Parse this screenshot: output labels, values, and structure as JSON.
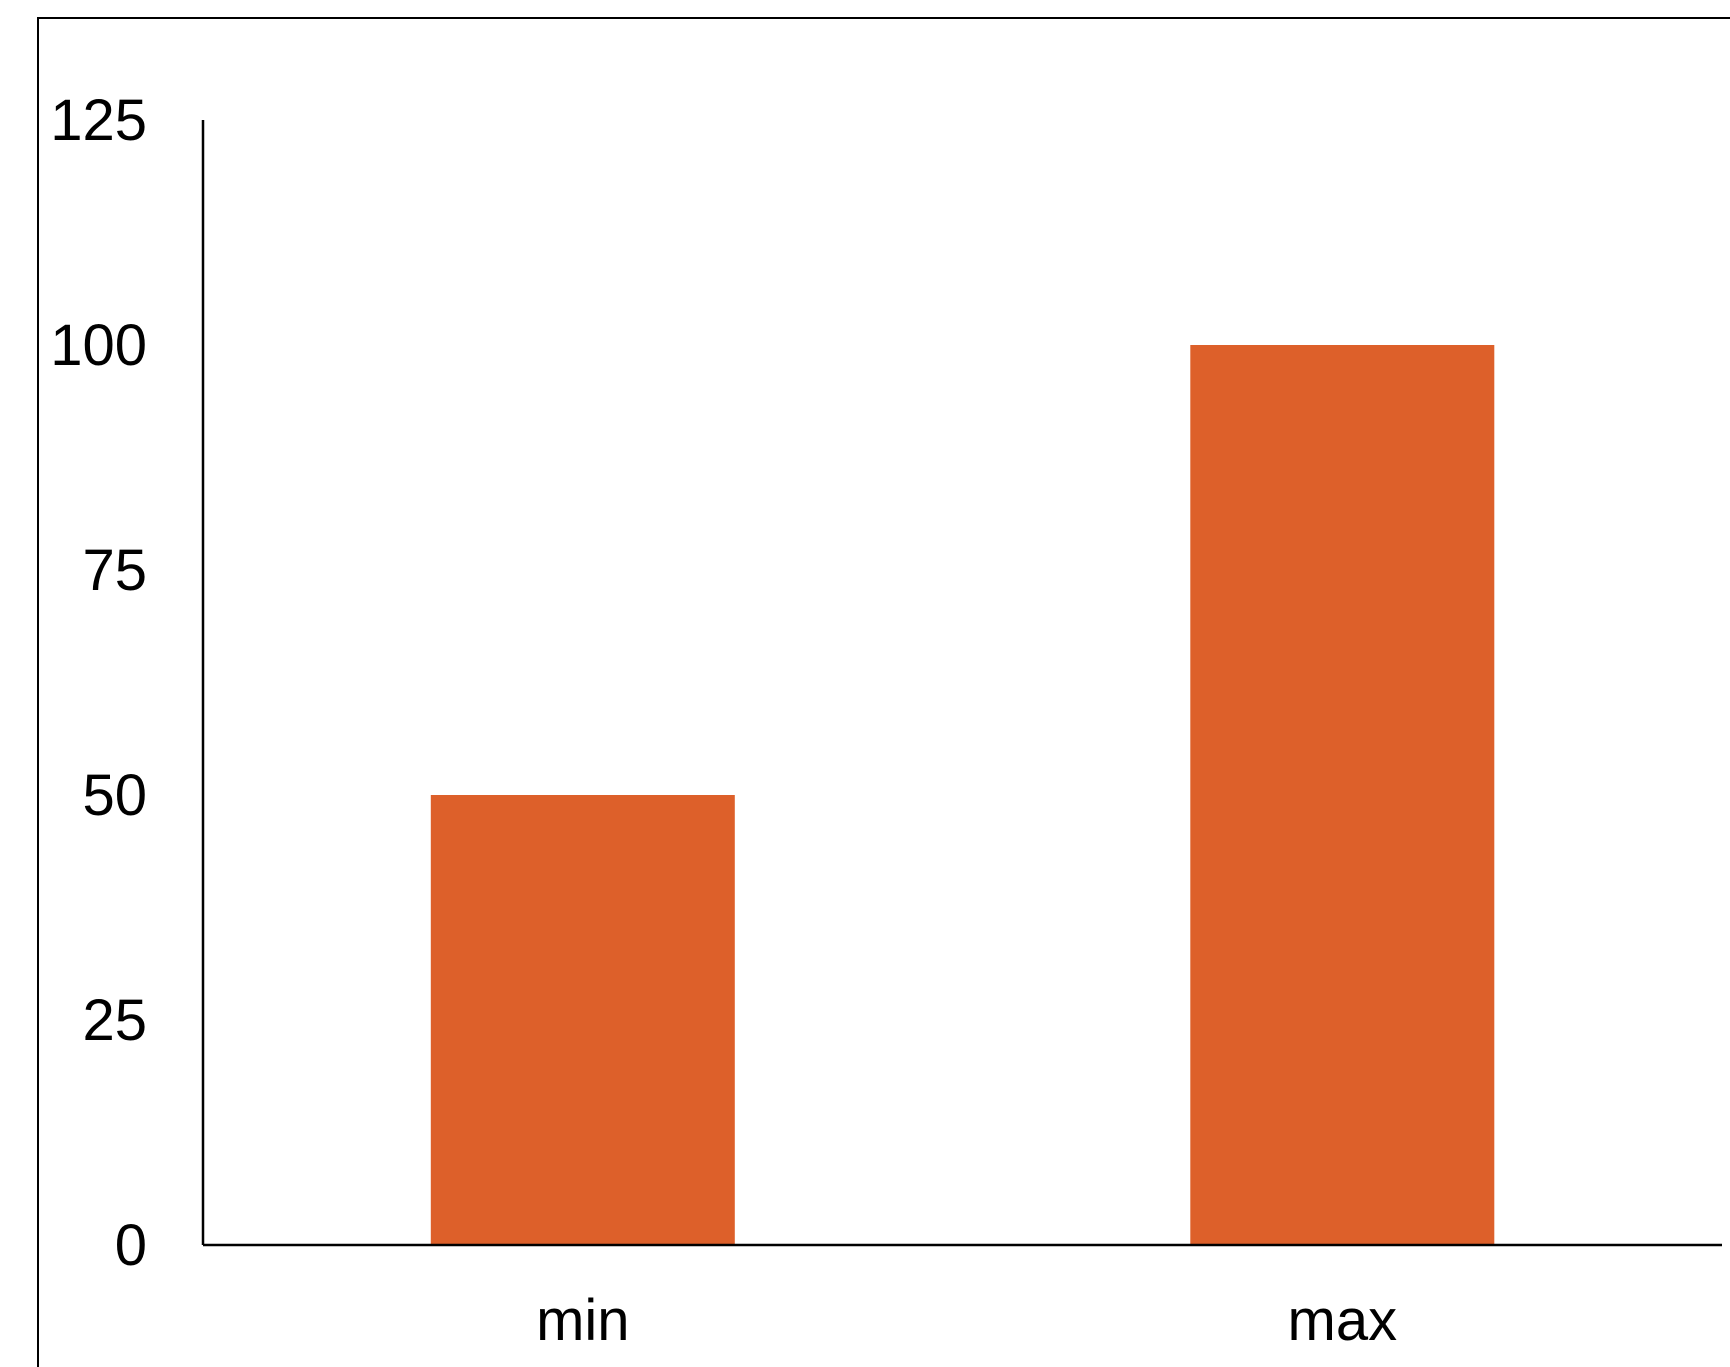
{
  "chart_data": {
    "type": "bar",
    "title": "",
    "xlabel": "",
    "ylabel": "",
    "categories": [
      "min",
      "max"
    ],
    "values": [
      50,
      100
    ],
    "ylim": [
      0,
      125
    ],
    "yticks": [
      0,
      25,
      50,
      75,
      100,
      125
    ],
    "ytick_labels": [
      "0",
      "25",
      "50",
      "75",
      "100",
      "125"
    ],
    "grid": false,
    "legend": "none",
    "bar_color": "#DD602A"
  }
}
